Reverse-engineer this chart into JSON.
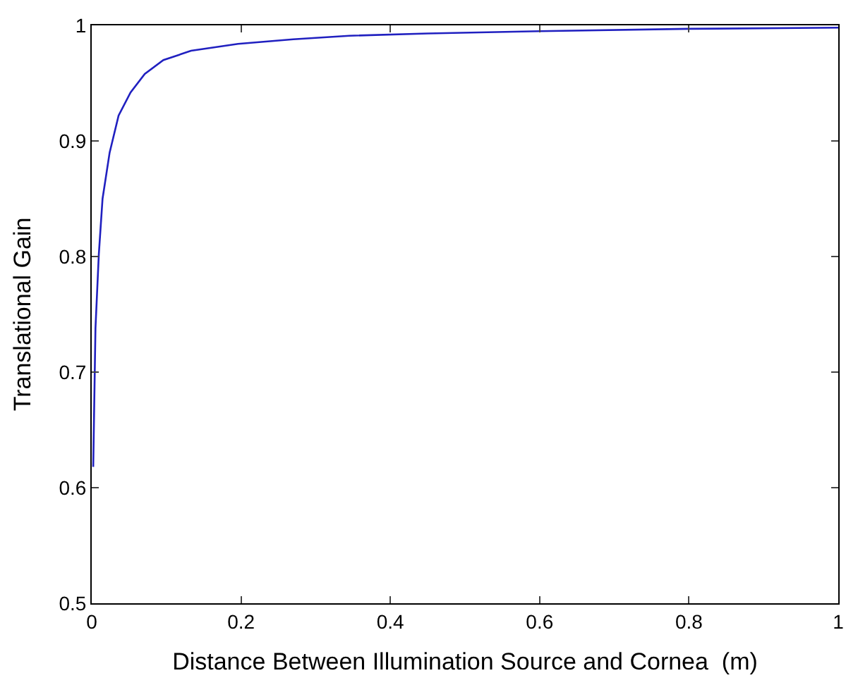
{
  "chart_data": {
    "type": "line",
    "xlabel": "Distance Between Illumination Source and Cornea  (m)",
    "ylabel": "Translational Gain",
    "x": [
      0.002,
      0.005,
      0.0095,
      0.0145,
      0.024,
      0.036,
      0.052,
      0.071,
      0.096,
      0.133,
      0.196,
      0.27,
      0.345,
      0.45,
      0.6,
      0.8,
      1.0
    ],
    "series": [
      {
        "color": "#2020c0",
        "values": [
          0.618,
          0.738,
          0.802,
          0.85,
          0.89,
          0.922,
          0.942,
          0.958,
          0.97,
          0.978,
          0.984,
          0.988,
          0.991,
          0.993,
          0.995,
          0.997,
          0.998
        ]
      }
    ],
    "xlim": [
      0,
      1
    ],
    "ylim": [
      0.5,
      1
    ],
    "xticks": [
      0,
      0.2,
      0.4,
      0.6,
      0.8,
      1
    ],
    "yticks": [
      0.5,
      0.6,
      0.7,
      0.8,
      0.9,
      1
    ],
    "marker": "none",
    "line_style": "solid"
  }
}
